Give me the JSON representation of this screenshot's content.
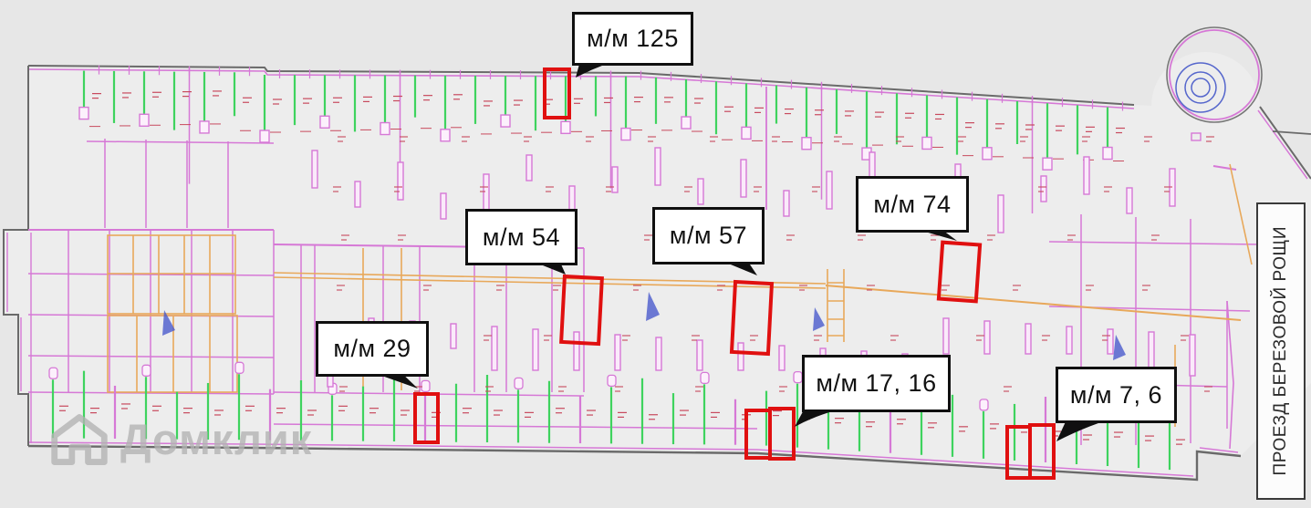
{
  "page": {
    "type": "underground-parking-floor-plan",
    "description": "CAD floor plan of a parking level with highlighted parking spaces"
  },
  "callouts": [
    {
      "id": "mm-125",
      "label": "м/м 125"
    },
    {
      "id": "mm-54",
      "label": "м/м 54"
    },
    {
      "id": "mm-57",
      "label": "м/м 57"
    },
    {
      "id": "mm-74",
      "label": "м/м 74"
    },
    {
      "id": "mm-29",
      "label": "м/м 29"
    },
    {
      "id": "mm-17-16",
      "label": "м/м 17, 16"
    },
    {
      "id": "mm-7-6",
      "label": "м/м 7, 6"
    }
  ],
  "street_sign": {
    "label": "ПРОЕЗД БЕРЕЗОВОЙ РОЩИ"
  },
  "watermark": {
    "label": "Домклик",
    "icon": "domclick-house-icon"
  },
  "colors": {
    "background": "#e9e9e9",
    "plan_fill": "#ededed",
    "outline_gray": "#6a6a6a",
    "wall_magenta": "#d678d6",
    "parking_green": "#3ed35e",
    "corridor_orange": "#e8a85a",
    "dimension_red": "#c84a5e",
    "ramp_blue": "#5566cc",
    "highlight_red": "#e01010",
    "callout_border": "#101010"
  }
}
